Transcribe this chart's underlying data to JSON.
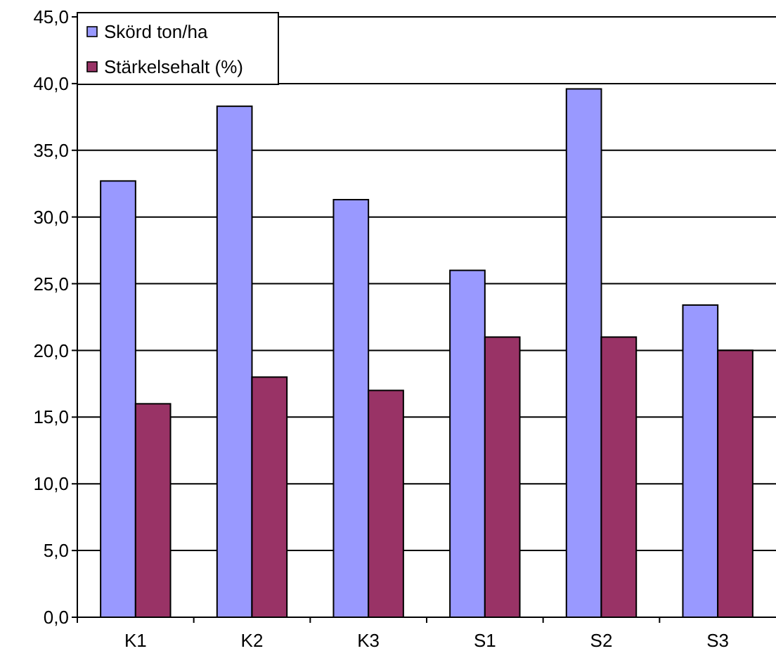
{
  "chart_data": {
    "type": "bar",
    "categories": [
      "K1",
      "K2",
      "K3",
      "S1",
      "S2",
      "S3"
    ],
    "series": [
      {
        "name": "Skörd  ton/ha",
        "color": "#9999ff",
        "values": [
          32.7,
          38.3,
          31.3,
          26.0,
          39.6,
          23.4
        ]
      },
      {
        "name": "Stärkelsehalt (%)",
        "color": "#993366",
        "values": [
          16,
          18,
          17,
          21,
          21,
          20
        ]
      }
    ],
    "ylim": [
      0,
      45
    ],
    "yticks": [
      {
        "value": 0,
        "label": "0,0"
      },
      {
        "value": 5,
        "label": "5,0"
      },
      {
        "value": 10,
        "label": "10,0"
      },
      {
        "value": 15,
        "label": "15,0"
      },
      {
        "value": 20,
        "label": "20,0"
      },
      {
        "value": 25,
        "label": "25,0"
      },
      {
        "value": 30,
        "label": "30,0"
      },
      {
        "value": 35,
        "label": "35,0"
      },
      {
        "value": 40,
        "label": "40,0"
      },
      {
        "value": 45,
        "label": "45,0"
      }
    ],
    "grid": "y",
    "legend": "top left"
  }
}
